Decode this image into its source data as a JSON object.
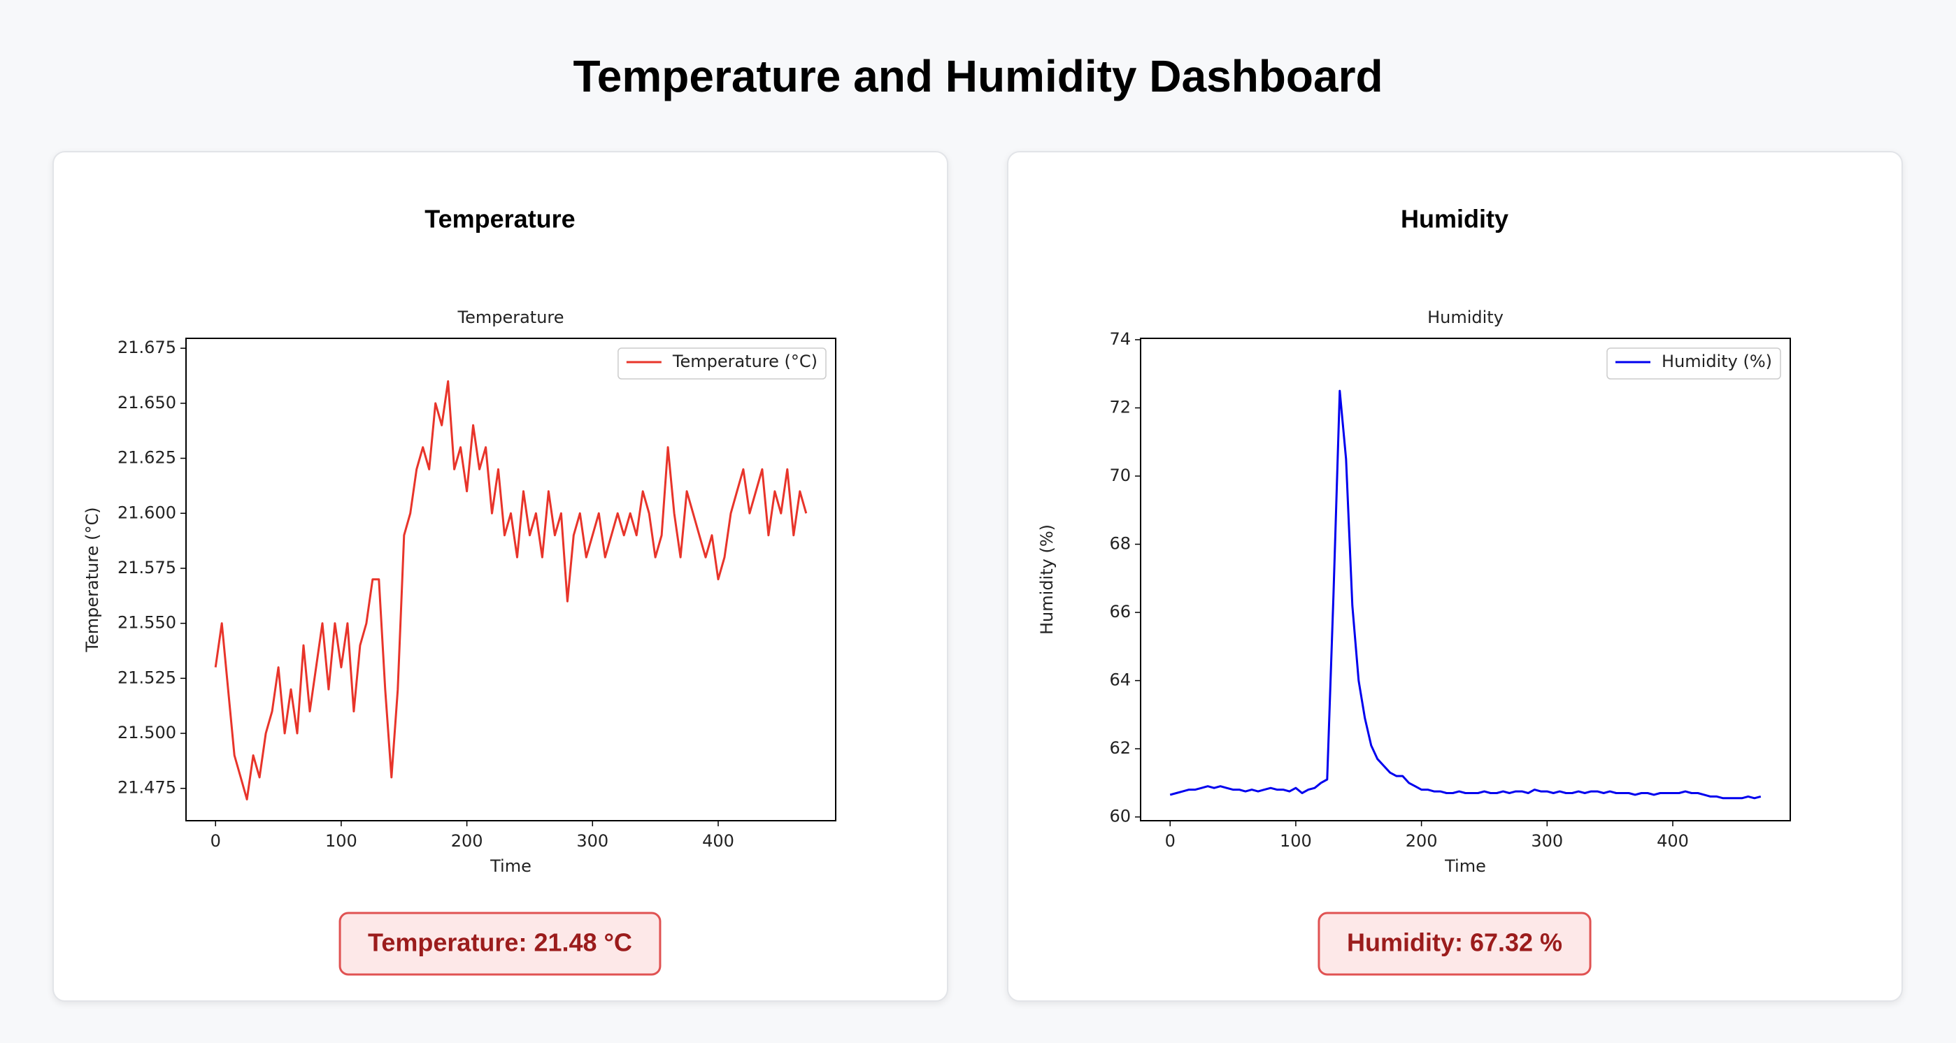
{
  "title": "Temperature and Humidity Dashboard",
  "panels": [
    {
      "heading": "Temperature",
      "readout": "Temperature: 21.48 °C"
    },
    {
      "heading": "Humidity",
      "readout": "Humidity: 67.32 %"
    }
  ],
  "chart_data": [
    {
      "type": "line",
      "title": "Temperature",
      "x_label": "Time",
      "y_label": "Temperature (°C)",
      "x": [
        0,
        5,
        10,
        15,
        20,
        25,
        30,
        35,
        40,
        45,
        50,
        55,
        60,
        65,
        70,
        75,
        80,
        85,
        90,
        95,
        100,
        105,
        110,
        115,
        120,
        125,
        130,
        135,
        140,
        145,
        150,
        155,
        160,
        165,
        170,
        175,
        180,
        185,
        190,
        195,
        200,
        205,
        210,
        215,
        220,
        225,
        230,
        235,
        240,
        245,
        250,
        255,
        260,
        265,
        270,
        275,
        280,
        285,
        290,
        295,
        300,
        305,
        310,
        315,
        320,
        325,
        330,
        335,
        340,
        345,
        350,
        355,
        360,
        365,
        370,
        375,
        380,
        385,
        390,
        395,
        400,
        405,
        410,
        415,
        420,
        425,
        430,
        435,
        440,
        445,
        450,
        455,
        460,
        465,
        470
      ],
      "series": [
        {
          "name": "Temperature (°C)",
          "color": "#e8342a",
          "values": [
            21.53,
            21.55,
            21.52,
            21.49,
            21.48,
            21.47,
            21.49,
            21.48,
            21.5,
            21.51,
            21.53,
            21.5,
            21.52,
            21.5,
            21.54,
            21.51,
            21.53,
            21.55,
            21.52,
            21.55,
            21.53,
            21.55,
            21.51,
            21.54,
            21.55,
            21.57,
            21.57,
            21.52,
            21.48,
            21.52,
            21.59,
            21.6,
            21.62,
            21.63,
            21.62,
            21.65,
            21.64,
            21.66,
            21.62,
            21.63,
            21.61,
            21.64,
            21.62,
            21.63,
            21.6,
            21.62,
            21.59,
            21.6,
            21.58,
            21.61,
            21.59,
            21.6,
            21.58,
            21.61,
            21.59,
            21.6,
            21.56,
            21.59,
            21.6,
            21.58,
            21.59,
            21.6,
            21.58,
            21.59,
            21.6,
            21.59,
            21.6,
            21.59,
            21.61,
            21.6,
            21.58,
            21.59,
            21.63,
            21.6,
            21.58,
            21.61,
            21.6,
            21.59,
            21.58,
            21.59,
            21.57,
            21.58,
            21.6,
            21.61,
            21.62,
            21.6,
            21.61,
            21.62,
            21.59,
            21.61,
            21.6,
            21.62,
            21.59,
            21.61,
            21.6
          ]
        }
      ],
      "xlim": [
        -23.5,
        493.5
      ],
      "xticks": [
        0,
        100,
        200,
        300,
        400
      ],
      "ylim": [
        21.4603,
        21.6795
      ],
      "yticks": [
        21.475,
        {
          "value": 21.5,
          "label": "21.500"
        },
        21.525,
        {
          "value": 21.55,
          "label": "21.550"
        },
        21.575,
        {
          "value": 21.6,
          "label": "21.600"
        },
        21.625,
        {
          "value": 21.65,
          "label": "21.650"
        },
        21.675
      ],
      "legend": "upper right"
    },
    {
      "type": "line",
      "title": "Humidity",
      "x_label": "Time",
      "y_label": "Humidity (%)",
      "x": [
        0,
        5,
        10,
        15,
        20,
        25,
        30,
        35,
        40,
        45,
        50,
        55,
        60,
        65,
        70,
        75,
        80,
        85,
        90,
        95,
        100,
        105,
        110,
        115,
        120,
        125,
        130,
        135,
        140,
        145,
        150,
        155,
        160,
        165,
        170,
        175,
        180,
        185,
        190,
        195,
        200,
        205,
        210,
        215,
        220,
        225,
        230,
        235,
        240,
        245,
        250,
        255,
        260,
        265,
        270,
        275,
        280,
        285,
        290,
        295,
        300,
        305,
        310,
        315,
        320,
        325,
        330,
        335,
        340,
        345,
        350,
        355,
        360,
        365,
        370,
        375,
        380,
        385,
        390,
        395,
        400,
        405,
        410,
        415,
        420,
        425,
        430,
        435,
        440,
        445,
        450,
        455,
        460,
        465,
        470
      ],
      "series": [
        {
          "name": "Humidity (%)",
          "color": "#0000ee",
          "values": [
            60.65,
            60.7,
            60.75,
            60.8,
            60.8,
            60.85,
            60.9,
            60.85,
            60.9,
            60.85,
            60.8,
            60.8,
            60.75,
            60.8,
            60.75,
            60.8,
            60.85,
            60.8,
            60.8,
            60.75,
            60.85,
            60.7,
            60.8,
            60.85,
            61.0,
            61.1,
            66.5,
            72.5,
            70.5,
            66.2,
            64.0,
            62.9,
            62.1,
            61.7,
            61.5,
            61.3,
            61.2,
            61.2,
            61.0,
            60.9,
            60.8,
            60.8,
            60.75,
            60.75,
            60.7,
            60.7,
            60.75,
            60.7,
            60.7,
            60.7,
            60.75,
            60.7,
            60.7,
            60.75,
            60.7,
            60.75,
            60.75,
            60.7,
            60.8,
            60.75,
            60.75,
            60.7,
            60.75,
            60.7,
            60.7,
            60.75,
            60.7,
            60.75,
            60.75,
            60.7,
            60.75,
            60.7,
            60.7,
            60.7,
            60.65,
            60.7,
            60.7,
            60.65,
            60.7,
            60.7,
            60.7,
            60.7,
            60.75,
            60.7,
            60.7,
            60.65,
            60.6,
            60.6,
            60.55,
            60.55,
            60.55,
            60.55,
            60.6,
            60.55,
            60.6
          ]
        }
      ],
      "xlim": [
        -23.5,
        493.5
      ],
      "xticks": [
        0,
        100,
        200,
        300,
        400
      ],
      "ylim": [
        59.89,
        74.04
      ],
      "yticks": [
        60,
        62,
        64,
        66,
        68,
        70,
        72,
        74
      ],
      "legend": "upper right"
    }
  ]
}
